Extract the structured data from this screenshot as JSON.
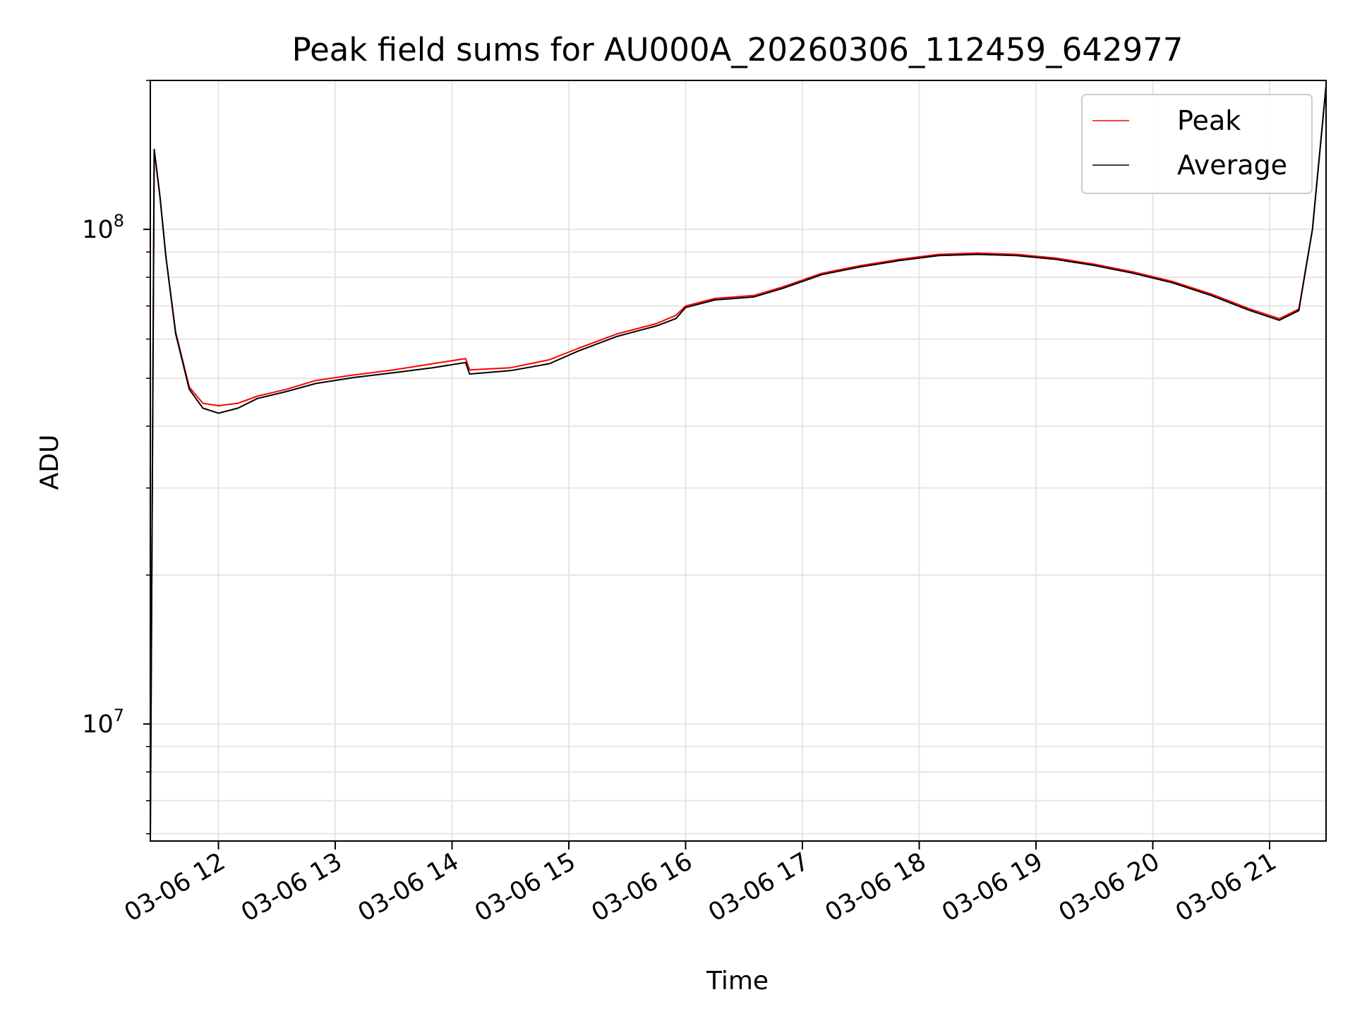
{
  "chart_data": {
    "type": "line",
    "title": "Peak field sums for AU000A_20260306_112459_642977",
    "xlabel": "Time",
    "ylabel": "ADU",
    "yscale": "log",
    "ylim": [
      5800000,
      200000000
    ],
    "xlim": [
      "2026-03-06 11:25",
      "2026-03-06 21:29"
    ],
    "x_ticks": [
      {
        "time": "2026-03-06 12:00",
        "label": "03-06 12"
      },
      {
        "time": "2026-03-06 13:00",
        "label": "03-06 13"
      },
      {
        "time": "2026-03-06 14:00",
        "label": "03-06 14"
      },
      {
        "time": "2026-03-06 15:00",
        "label": "03-06 15"
      },
      {
        "time": "2026-03-06 16:00",
        "label": "03-06 16"
      },
      {
        "time": "2026-03-06 17:00",
        "label": "03-06 17"
      },
      {
        "time": "2026-03-06 18:00",
        "label": "03-06 18"
      },
      {
        "time": "2026-03-06 19:00",
        "label": "03-06 19"
      },
      {
        "time": "2026-03-06 20:00",
        "label": "03-06 20"
      },
      {
        "time": "2026-03-06 21:00",
        "label": "03-06 21"
      }
    ],
    "y_major_ticks": [
      {
        "value": 10000000,
        "base": "10",
        "exp": "7"
      },
      {
        "value": 100000000,
        "base": "10",
        "exp": "8"
      }
    ],
    "grid": true,
    "legend": "top-right",
    "series": [
      {
        "name": "Peak",
        "color": "#ff0000",
        "points": [
          [
            "2026-03-06 11:25",
            5800000
          ],
          [
            "2026-03-06 11:27",
            145000000
          ],
          [
            "2026-03-06 11:30",
            116000000
          ],
          [
            "2026-03-06 11:33",
            88000000
          ],
          [
            "2026-03-06 11:38",
            62000000
          ],
          [
            "2026-03-06 11:45",
            48000000
          ],
          [
            "2026-03-06 11:52",
            44500000
          ],
          [
            "2026-03-06 12:00",
            44000000
          ],
          [
            "2026-03-06 12:10",
            44500000
          ],
          [
            "2026-03-06 12:20",
            46000000
          ],
          [
            "2026-03-06 12:35",
            47500000
          ],
          [
            "2026-03-06 12:50",
            49500000
          ],
          [
            "2026-03-06 13:10",
            50800000
          ],
          [
            "2026-03-06 13:30",
            52000000
          ],
          [
            "2026-03-06 13:50",
            53500000
          ],
          [
            "2026-03-06 14:07",
            54800000
          ],
          [
            "2026-03-06 14:09",
            52000000
          ],
          [
            "2026-03-06 14:30",
            52500000
          ],
          [
            "2026-03-06 14:50",
            54500000
          ],
          [
            "2026-03-06 15:05",
            57500000
          ],
          [
            "2026-03-06 15:25",
            61500000
          ],
          [
            "2026-03-06 15:45",
            64500000
          ],
          [
            "2026-03-06 15:55",
            67000000
          ],
          [
            "2026-03-06 16:00",
            70000000
          ],
          [
            "2026-03-06 16:15",
            72500000
          ],
          [
            "2026-03-06 16:35",
            73500000
          ],
          [
            "2026-03-06 16:50",
            76500000
          ],
          [
            "2026-03-06 17:10",
            81500000
          ],
          [
            "2026-03-06 17:30",
            84500000
          ],
          [
            "2026-03-06 17:50",
            87000000
          ],
          [
            "2026-03-06 18:10",
            89000000
          ],
          [
            "2026-03-06 18:30",
            89500000
          ],
          [
            "2026-03-06 18:50",
            89000000
          ],
          [
            "2026-03-06 19:10",
            87500000
          ],
          [
            "2026-03-06 19:30",
            85000000
          ],
          [
            "2026-03-06 19:50",
            82000000
          ],
          [
            "2026-03-06 20:10",
            78500000
          ],
          [
            "2026-03-06 20:30",
            74000000
          ],
          [
            "2026-03-06 20:50",
            69000000
          ],
          [
            "2026-03-06 21:05",
            66000000
          ],
          [
            "2026-03-06 21:15",
            69000000
          ],
          [
            "2026-03-06 21:22",
            100000000
          ],
          [
            "2026-03-06 21:29",
            195000000
          ]
        ]
      },
      {
        "name": "Average",
        "color": "#000000",
        "points": [
          [
            "2026-03-06 11:25",
            5800000
          ],
          [
            "2026-03-06 11:27",
            145000000
          ],
          [
            "2026-03-06 11:30",
            116000000
          ],
          [
            "2026-03-06 11:33",
            88000000
          ],
          [
            "2026-03-06 11:38",
            61500000
          ],
          [
            "2026-03-06 11:45",
            47500000
          ],
          [
            "2026-03-06 11:52",
            43500000
          ],
          [
            "2026-03-06 12:00",
            42500000
          ],
          [
            "2026-03-06 12:10",
            43500000
          ],
          [
            "2026-03-06 12:20",
            45500000
          ],
          [
            "2026-03-06 12:35",
            47000000
          ],
          [
            "2026-03-06 12:50",
            48800000
          ],
          [
            "2026-03-06 13:10",
            50200000
          ],
          [
            "2026-03-06 13:30",
            51300000
          ],
          [
            "2026-03-06 13:50",
            52500000
          ],
          [
            "2026-03-06 14:07",
            53800000
          ],
          [
            "2026-03-06 14:09",
            51000000
          ],
          [
            "2026-03-06 14:30",
            51800000
          ],
          [
            "2026-03-06 14:50",
            53500000
          ],
          [
            "2026-03-06 15:05",
            56800000
          ],
          [
            "2026-03-06 15:25",
            60800000
          ],
          [
            "2026-03-06 15:45",
            63800000
          ],
          [
            "2026-03-06 15:55",
            66000000
          ],
          [
            "2026-03-06 16:00",
            69500000
          ],
          [
            "2026-03-06 16:15",
            72000000
          ],
          [
            "2026-03-06 16:35",
            73000000
          ],
          [
            "2026-03-06 16:50",
            76000000
          ],
          [
            "2026-03-06 17:10",
            81000000
          ],
          [
            "2026-03-06 17:30",
            84000000
          ],
          [
            "2026-03-06 17:50",
            86500000
          ],
          [
            "2026-03-06 18:10",
            88500000
          ],
          [
            "2026-03-06 18:30",
            89000000
          ],
          [
            "2026-03-06 18:50",
            88500000
          ],
          [
            "2026-03-06 19:10",
            87000000
          ],
          [
            "2026-03-06 19:30",
            84500000
          ],
          [
            "2026-03-06 19:50",
            81500000
          ],
          [
            "2026-03-06 20:10",
            78000000
          ],
          [
            "2026-03-06 20:30",
            73500000
          ],
          [
            "2026-03-06 20:50",
            68500000
          ],
          [
            "2026-03-06 21:05",
            65500000
          ],
          [
            "2026-03-06 21:15",
            68500000
          ],
          [
            "2026-03-06 21:22",
            100000000
          ],
          [
            "2026-03-06 21:29",
            195000000
          ]
        ]
      }
    ]
  }
}
